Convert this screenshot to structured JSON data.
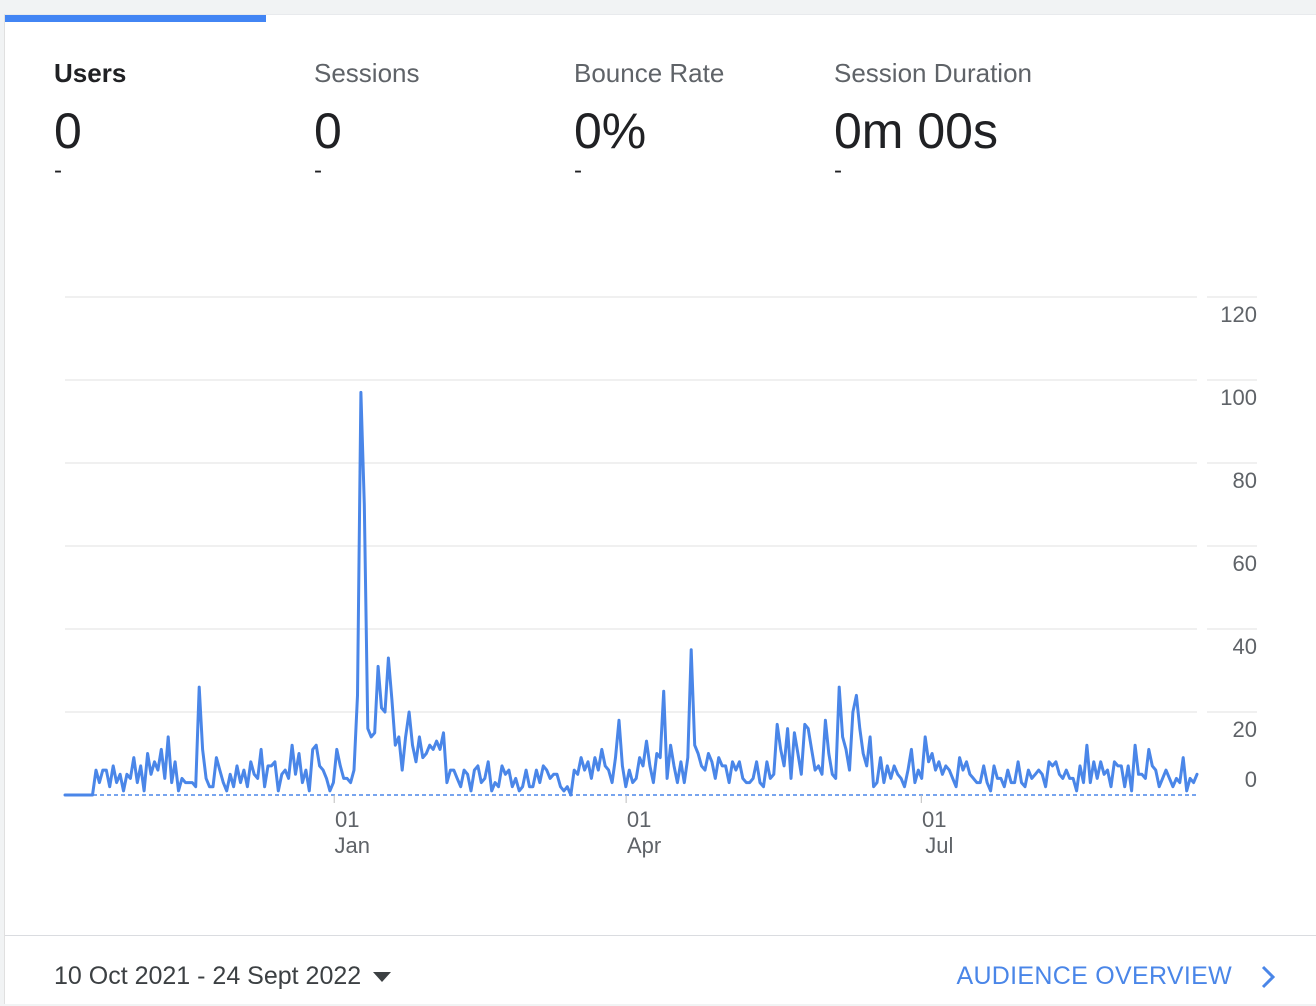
{
  "metrics": [
    {
      "label": "Users",
      "value": "0",
      "delta": "-"
    },
    {
      "label": "Sessions",
      "value": "0",
      "delta": "-"
    },
    {
      "label": "Bounce Rate",
      "value": "0%",
      "delta": "-"
    },
    {
      "label": "Session Duration",
      "value": "0m 00s",
      "delta": "-"
    }
  ],
  "footer": {
    "date_range": "10 Oct 2021 - 24 Sept 2022",
    "caret_icon": "caret-down-icon",
    "link_label": "AUDIENCE OVERVIEW",
    "link_icon": "chevron-right-icon"
  },
  "colors": {
    "accent": "#4285f4",
    "line": "#4a86e8",
    "link": "#4a86e8"
  },
  "chart_data": {
    "type": "line",
    "x_range": [
      "2021-10-10",
      "2022-09-24"
    ],
    "y_ticks": [
      120,
      100,
      80,
      60,
      40,
      20,
      0
    ],
    "ylim": [
      0,
      120
    ],
    "x_ticks": [
      {
        "day": "01",
        "month": "Jan",
        "date": "2022-01-01"
      },
      {
        "day": "01",
        "month": "Apr",
        "date": "2022-04-01"
      },
      {
        "day": "01",
        "month": "Jul",
        "date": "2022-07-01"
      }
    ],
    "grid": true,
    "series": [
      {
        "values": [
          0,
          0,
          0,
          0,
          0,
          0,
          0,
          0,
          0,
          6,
          3,
          6,
          6,
          2,
          7,
          3,
          5,
          1,
          5,
          4,
          9,
          3,
          7,
          1,
          10,
          5,
          8,
          6,
          11,
          4,
          14,
          3,
          8,
          1,
          4,
          3,
          3,
          3,
          2,
          26,
          11,
          4,
          2,
          2,
          9,
          6,
          3,
          1,
          5,
          2,
          7,
          3,
          6,
          2,
          8,
          5,
          4,
          11,
          2,
          7,
          7,
          8,
          1,
          5,
          6,
          4,
          12,
          5,
          10,
          3,
          6,
          1,
          11,
          12,
          7,
          6,
          4,
          1,
          3,
          11,
          7,
          4,
          4,
          3,
          6,
          24,
          97,
          70,
          16,
          14,
          15,
          31,
          21,
          20,
          33,
          23,
          12,
          14,
          6,
          14,
          20,
          12,
          8,
          14,
          9,
          10,
          12,
          11,
          13,
          11,
          15,
          3,
          6,
          6,
          4,
          2,
          6,
          5,
          1,
          6,
          7,
          3,
          4,
          8,
          1,
          3,
          2,
          7,
          5,
          6,
          2,
          4,
          1,
          2,
          6,
          2,
          2,
          6,
          3,
          7,
          6,
          4,
          5,
          5,
          2,
          1,
          2,
          0,
          6,
          5,
          9,
          6,
          8,
          4,
          9,
          6,
          11,
          7,
          6,
          3,
          9,
          18,
          7,
          2,
          6,
          3,
          4,
          9,
          7,
          13,
          7,
          3,
          10,
          9,
          25,
          4,
          12,
          7,
          3,
          8,
          3,
          9,
          35,
          12,
          10,
          7,
          6,
          10,
          8,
          4,
          9,
          7,
          7,
          3,
          8,
          6,
          8,
          4,
          3,
          3,
          4,
          8,
          3,
          2,
          8,
          4,
          5,
          17,
          11,
          7,
          16,
          4,
          15,
          10,
          5,
          17,
          16,
          11,
          6,
          7,
          5,
          18,
          10,
          5,
          4,
          26,
          14,
          11,
          6,
          20,
          24,
          16,
          10,
          7,
          14,
          2,
          3,
          9,
          3,
          7,
          4,
          7,
          5,
          4,
          2,
          6,
          11,
          3,
          6,
          4,
          14,
          8,
          10,
          6,
          8,
          5,
          7,
          6,
          4,
          2,
          9,
          6,
          8,
          5,
          4,
          3,
          3,
          7,
          3,
          1,
          7,
          4,
          4,
          2,
          6,
          3,
          3,
          8,
          3,
          2,
          6,
          4,
          5,
          6,
          5,
          2,
          8,
          7,
          8,
          5,
          4,
          6,
          4,
          4,
          1,
          7,
          3,
          12,
          3,
          8,
          4,
          8,
          5,
          6,
          2,
          8,
          7,
          7,
          2,
          7,
          1,
          12,
          5,
          5,
          4,
          11,
          7,
          6,
          2,
          4,
          6,
          4,
          2,
          4,
          3,
          9,
          1,
          4,
          3,
          5
        ]
      }
    ]
  }
}
